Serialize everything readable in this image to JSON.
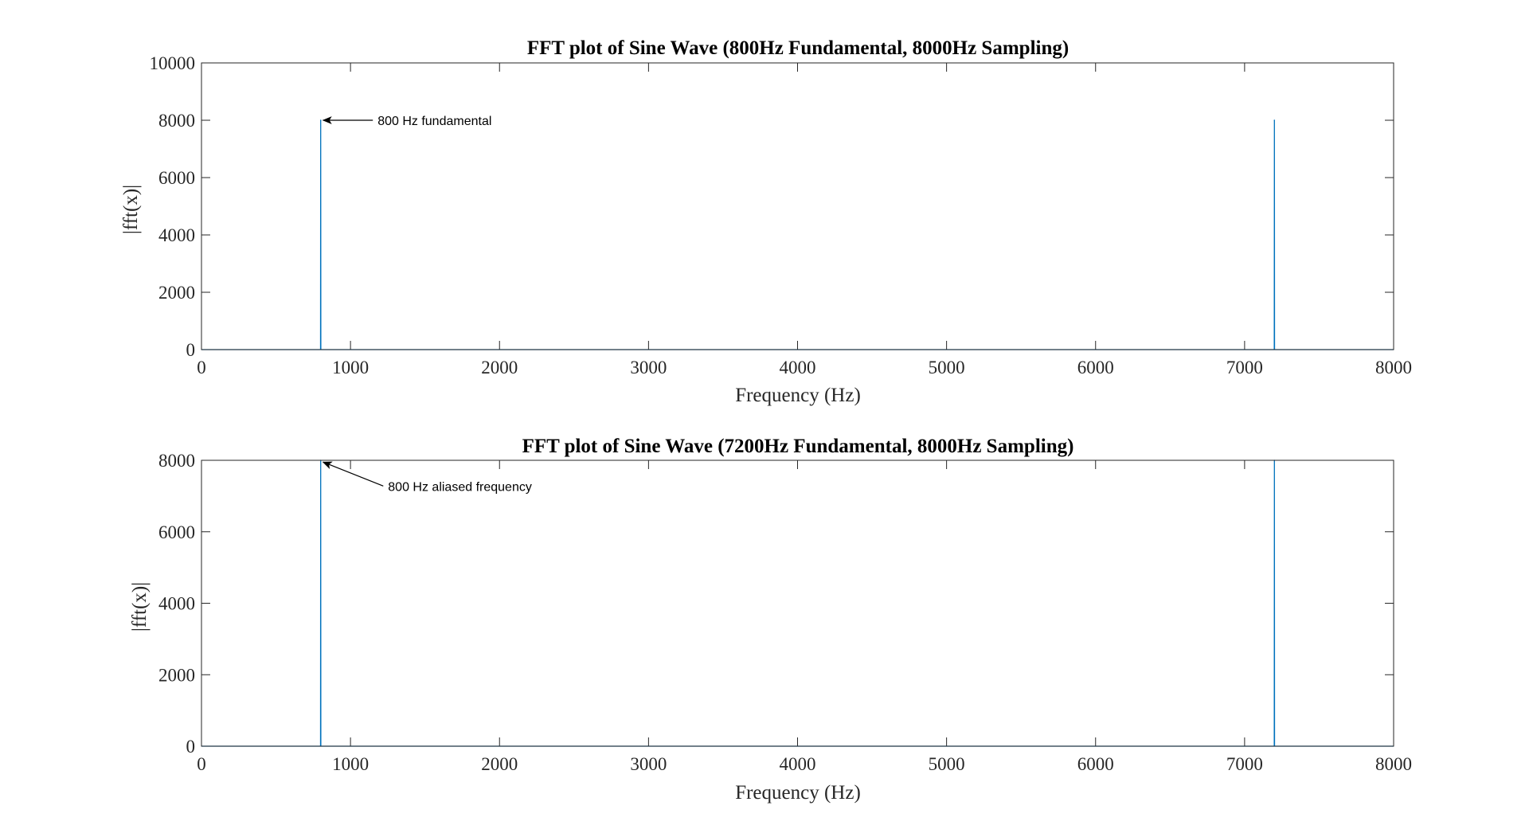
{
  "chart_data": [
    {
      "type": "line",
      "title": "FFT plot of Sine Wave (800Hz Fundamental, 8000Hz Sampling)",
      "xlabel": "Frequency (Hz)",
      "ylabel": "|fft(x)|",
      "xlim": [
        0,
        8000
      ],
      "ylim": [
        0,
        10000
      ],
      "xticks": [
        "0",
        "1000",
        "2000",
        "3000",
        "4000",
        "5000",
        "6000",
        "7000",
        "8000"
      ],
      "yticks": [
        "0",
        "2000",
        "4000",
        "6000",
        "8000",
        "10000"
      ],
      "series": [
        {
          "x": [
            0,
            799,
            800,
            801,
            7199,
            7200,
            7201,
            8000
          ],
          "y": [
            0,
            0,
            8000,
            0,
            0,
            8000,
            0,
            0
          ],
          "color": "#0072BD"
        }
      ],
      "annotations": [
        {
          "text": "800 Hz fundamental",
          "arrow_to": [
            800,
            8000
          ],
          "from": [
            1150,
            8000
          ]
        }
      ],
      "grid": false,
      "legend": "none"
    },
    {
      "type": "line",
      "title": "FFT plot of Sine Wave (7200Hz Fundamental, 8000Hz Sampling)",
      "xlabel": "Frequency (Hz)",
      "ylabel": "|fft(x)|",
      "xlim": [
        0,
        8000
      ],
      "ylim": [
        0,
        8000
      ],
      "xticks": [
        "0",
        "1000",
        "2000",
        "3000",
        "4000",
        "5000",
        "6000",
        "7000",
        "8000"
      ],
      "yticks": [
        "0",
        "2000",
        "4000",
        "6000",
        "8000"
      ],
      "series": [
        {
          "x": [
            0,
            799,
            800,
            801,
            7199,
            7200,
            7201,
            8000
          ],
          "y": [
            0,
            0,
            8000,
            0,
            0,
            8000,
            0,
            0
          ],
          "color": "#0072BD"
        }
      ],
      "annotations": [
        {
          "text": "800 Hz aliased frequency",
          "arrow_to": [
            800,
            7950
          ],
          "from": [
            1220,
            7280
          ]
        }
      ],
      "grid": false,
      "legend": "none"
    }
  ]
}
